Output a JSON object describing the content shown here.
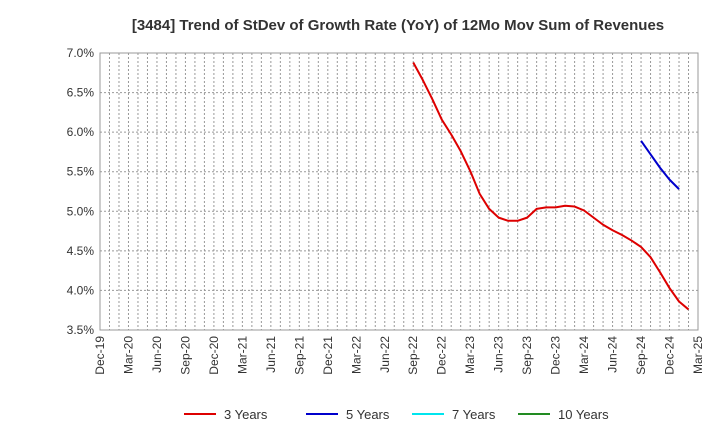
{
  "chart_data": {
    "type": "line",
    "title": "[3484]  Trend of StDev of Growth Rate (YoY) of 12Mo Mov Sum of Revenues",
    "xlabel": "",
    "ylabel": "",
    "ylim": [
      3.5,
      7.0
    ],
    "yticks": [
      3.5,
      4.0,
      4.5,
      5.0,
      5.5,
      6.0,
      6.5,
      7.0
    ],
    "ytick_labels": [
      "3.5%",
      "4.0%",
      "4.5%",
      "5.0%",
      "5.5%",
      "6.0%",
      "6.5%",
      "7.0%"
    ],
    "xtick_labels": [
      "Dec-19",
      "Mar-20",
      "Jun-20",
      "Sep-20",
      "Dec-20",
      "Mar-21",
      "Jun-21",
      "Sep-21",
      "Dec-21",
      "Mar-22",
      "Jun-22",
      "Sep-22",
      "Dec-22",
      "Mar-23",
      "Jun-23",
      "Sep-23",
      "Dec-23",
      "Mar-24",
      "Jun-24",
      "Sep-24",
      "Dec-24",
      "Mar-25"
    ],
    "x_start": "Dec-19",
    "x_months": 63,
    "grid": true,
    "legend_position": "bottom",
    "series": [
      {
        "name": "3 Years",
        "color": "#dd0000",
        "start_month_index": 33,
        "values": [
          6.88,
          6.66,
          6.42,
          6.16,
          5.97,
          5.76,
          5.51,
          5.22,
          5.03,
          4.92,
          4.88,
          4.88,
          4.92,
          5.03,
          5.05,
          5.05,
          5.07,
          5.06,
          5.01,
          4.92,
          4.83,
          4.76,
          4.7,
          4.63,
          4.55,
          4.42,
          4.23,
          4.03,
          3.86,
          3.76
        ]
      },
      {
        "name": "5 Years",
        "color": "#0000cc",
        "start_month_index": 57,
        "values": [
          5.89,
          5.72,
          5.55,
          5.4,
          5.28
        ]
      },
      {
        "name": "7 Years",
        "color": "#00e5ee",
        "start_month_index": null,
        "values": []
      },
      {
        "name": "10 Years",
        "color": "#228b22",
        "start_month_index": null,
        "values": []
      }
    ]
  }
}
